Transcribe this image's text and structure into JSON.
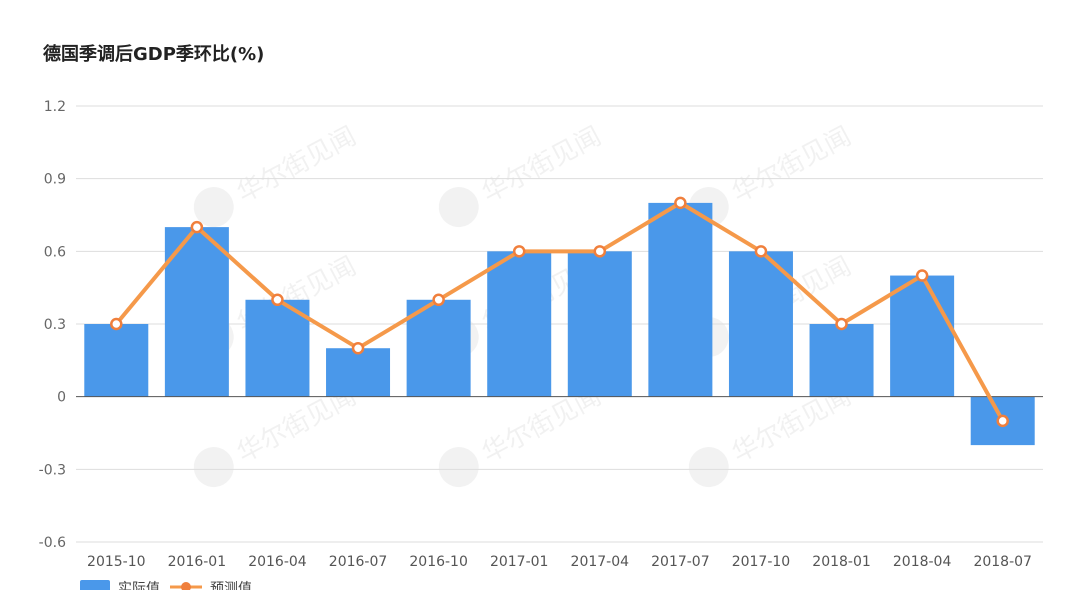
{
  "chart_data": {
    "type": "bar",
    "title": "德国季调后GDP季环比(%)",
    "categories": [
      "2015-10",
      "2016-01",
      "2016-04",
      "2016-07",
      "2016-10",
      "2017-01",
      "2017-04",
      "2017-07",
      "2017-10",
      "2018-01",
      "2018-04",
      "2018-07"
    ],
    "series": [
      {
        "name": "实际值",
        "type": "bar",
        "values": [
          0.3,
          0.7,
          0.4,
          0.2,
          0.4,
          0.6,
          0.6,
          0.8,
          0.6,
          0.3,
          0.5,
          -0.2
        ]
      },
      {
        "name": "预测值",
        "type": "line",
        "values": [
          0.3,
          0.7,
          0.4,
          0.2,
          0.4,
          0.6,
          0.6,
          0.8,
          0.6,
          0.3,
          0.5,
          -0.1
        ]
      }
    ],
    "yticks": [
      "1.2",
      "0.9",
      "0.6",
      "0.3",
      "0",
      "-0.3",
      "-0.6"
    ],
    "ylim": [
      -0.6,
      1.2
    ],
    "grid": true,
    "legend_position": "bottom-left"
  },
  "colors": {
    "bar": "#4a98ea",
    "line": "#f5994a",
    "marker_fill": "#ffffff",
    "marker_stroke": "#f07f3c",
    "grid": "#dddddd",
    "axis": "#555555"
  },
  "watermark": {
    "text": "华尔街见闻",
    "icon": "yen-coin-icon"
  }
}
